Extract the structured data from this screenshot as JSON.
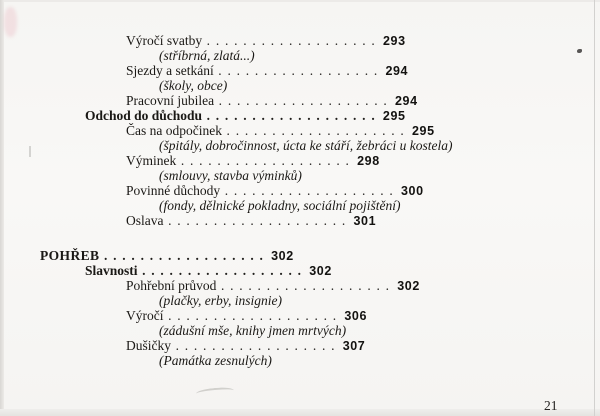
{
  "page_number": "21",
  "colors": {
    "background": "#f7f6f4",
    "text": "#1a1815",
    "page_numbers": "#131210"
  },
  "toc": {
    "items": [
      {
        "kind": "entry",
        "level": 2,
        "label": "Výročí svatby",
        "page": "293",
        "dots": 19
      },
      {
        "kind": "note",
        "text": "(stříbrná, zlatá...)"
      },
      {
        "kind": "entry",
        "level": 2,
        "label": "Sjezdy a setkání",
        "page": "294",
        "dots": 18
      },
      {
        "kind": "note",
        "text": "(školy, obce)"
      },
      {
        "kind": "entry",
        "level": 2,
        "label": "Pracovní jubilea",
        "page": "294",
        "dots": 19
      },
      {
        "kind": "entry",
        "level": 1,
        "label": "Odchod do důchodu",
        "page": "295",
        "dots": 19
      },
      {
        "kind": "entry",
        "level": 2,
        "label": "Čas na odpočinek",
        "page": "295",
        "dots": 20
      },
      {
        "kind": "note",
        "text": "(špitály, dobročinnost, úcta ke stáří, žebráci u kostela)"
      },
      {
        "kind": "entry",
        "level": 2,
        "label": "Výminek",
        "page": "298",
        "dots": 19
      },
      {
        "kind": "note",
        "text": "(smlouvy, stavba výminků)"
      },
      {
        "kind": "entry",
        "level": 2,
        "label": "Povinné důchody",
        "page": "300",
        "dots": 19
      },
      {
        "kind": "note",
        "text": "(fondy, dělnické pokladny, sociální pojištění)"
      },
      {
        "kind": "entry",
        "level": 2,
        "label": "Oslava",
        "page": "301",
        "dots": 20
      },
      {
        "kind": "gap"
      },
      {
        "kind": "entry",
        "level": 0,
        "label": "POHŘEB",
        "page": "302",
        "dots": 18
      },
      {
        "kind": "entry",
        "level": 1,
        "label": "Slavnosti",
        "page": "302",
        "dots": 18
      },
      {
        "kind": "entry",
        "level": 2,
        "label": "Pohřební průvod",
        "page": "302",
        "dots": 19
      },
      {
        "kind": "note",
        "text": "(plačky, erby, insignie)"
      },
      {
        "kind": "entry",
        "level": 2,
        "label": "Výročí",
        "page": "306",
        "dots": 19
      },
      {
        "kind": "note",
        "text": "(zádušní mše, knihy jmen mrtvých)"
      },
      {
        "kind": "entry",
        "level": 2,
        "label": "Dušičky",
        "page": "307",
        "dots": 18
      },
      {
        "kind": "note",
        "text": "(Památka zesnulých)"
      }
    ]
  }
}
